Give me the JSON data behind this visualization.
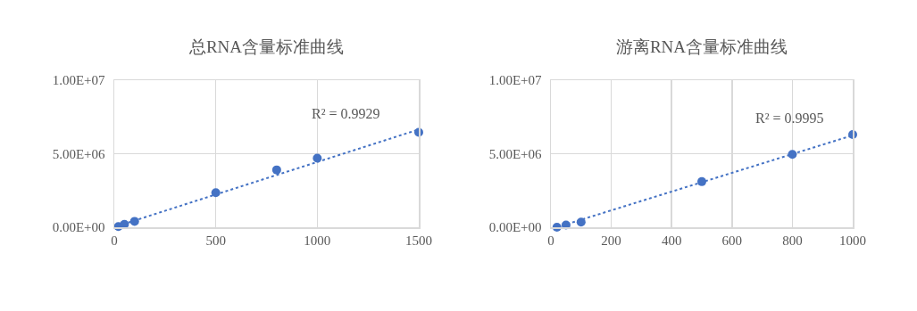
{
  "chart_data": [
    {
      "type": "scatter",
      "title": "总RNA含量标准曲线",
      "marker": "circle",
      "grid": true,
      "xlim": [
        0,
        1500
      ],
      "xticks": [
        0,
        500,
        1000,
        1500
      ],
      "ylim": [
        0,
        10000000
      ],
      "yticks": [
        {
          "value": 0,
          "label": "0.00E+00"
        },
        {
          "value": 5000000,
          "label": "5.00E+06"
        },
        {
          "value": 10000000,
          "label": "1.00E+07"
        }
      ],
      "annotations": [
        "R² = 0.9929"
      ],
      "series": [
        {
          "color": "#4472c4",
          "x": [
            20,
            50,
            100,
            500,
            800,
            1000,
            1500
          ],
          "values": [
            50000,
            200000,
            400000,
            2350000,
            3900000,
            4700000,
            6450000
          ]
        },
        {
          "type": "line",
          "line_style": "dotted",
          "marker": "none",
          "color": "#4472c4",
          "x": [
            20,
            1500
          ],
          "values": [
            100000,
            6650000
          ]
        }
      ]
    },
    {
      "type": "scatter",
      "title": "游离RNA含量标准曲线",
      "marker": "circle",
      "grid": true,
      "xlim": [
        0,
        1000
      ],
      "xticks": [
        0,
        200,
        400,
        600,
        800,
        1000
      ],
      "ylim": [
        0,
        10000000
      ],
      "yticks": [
        {
          "value": 0,
          "label": "0.00E+00"
        },
        {
          "value": 5000000,
          "label": "5.00E+06"
        },
        {
          "value": 10000000,
          "label": "1.00E+07"
        }
      ],
      "annotations": [
        "R² = 0.9995"
      ],
      "series": [
        {
          "color": "#4472c4",
          "x": [
            20,
            50,
            100,
            500,
            800,
            1000
          ],
          "values": [
            0,
            150000,
            350000,
            3100000,
            4950000,
            6300000
          ]
        },
        {
          "type": "line",
          "line_style": "dotted",
          "marker": "none",
          "color": "#4472c4",
          "x": [
            20,
            1000
          ],
          "values": [
            0,
            6250000
          ]
        }
      ]
    }
  ]
}
